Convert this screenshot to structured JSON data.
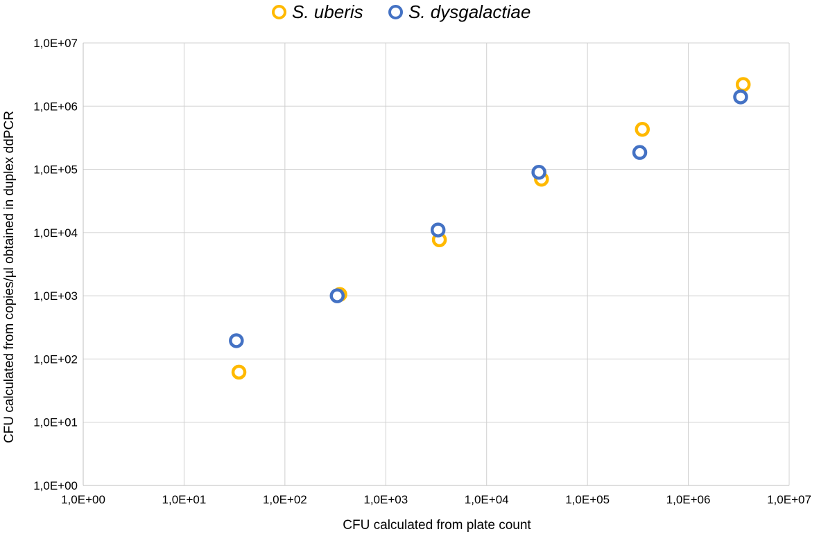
{
  "chart_data": {
    "type": "scatter",
    "title": "",
    "xlabel": "CFU calculated from plate count",
    "ylabel": "CFU calculated from copies/µl obtained in duplex ddPCR",
    "xscale": "log",
    "yscale": "log",
    "xlim": [
      1,
      10000000
    ],
    "ylim": [
      1,
      10000000
    ],
    "grid": true,
    "legend_position": "top-center",
    "x_tick_labels": [
      "1,0E+00",
      "1,0E+01",
      "1,0E+02",
      "1,0E+03",
      "1,0E+04",
      "1,0E+05",
      "1,0E+06",
      "1,0E+07"
    ],
    "y_tick_labels": [
      "1,0E+00",
      "1,0E+01",
      "1,0E+02",
      "1,0E+03",
      "1,0E+04",
      "1,0E+05",
      "1,0E+06",
      "1,0E+07"
    ],
    "series": [
      {
        "name": "S. uberis",
        "color": "#FFB900",
        "points": [
          {
            "x": 35,
            "y": 62
          },
          {
            "x": 350,
            "y": 1050
          },
          {
            "x": 3400,
            "y": 7700
          },
          {
            "x": 35000,
            "y": 70000
          },
          {
            "x": 350000,
            "y": 430000
          },
          {
            "x": 3500000,
            "y": 2200000
          }
        ]
      },
      {
        "name": "S. dysgalactiae",
        "color": "#4472C4",
        "points": [
          {
            "x": 33,
            "y": 195
          },
          {
            "x": 330,
            "y": 1000
          },
          {
            "x": 3300,
            "y": 11000
          },
          {
            "x": 33000,
            "y": 90000
          },
          {
            "x": 330000,
            "y": 185000
          },
          {
            "x": 3300000,
            "y": 1400000
          }
        ]
      }
    ]
  }
}
